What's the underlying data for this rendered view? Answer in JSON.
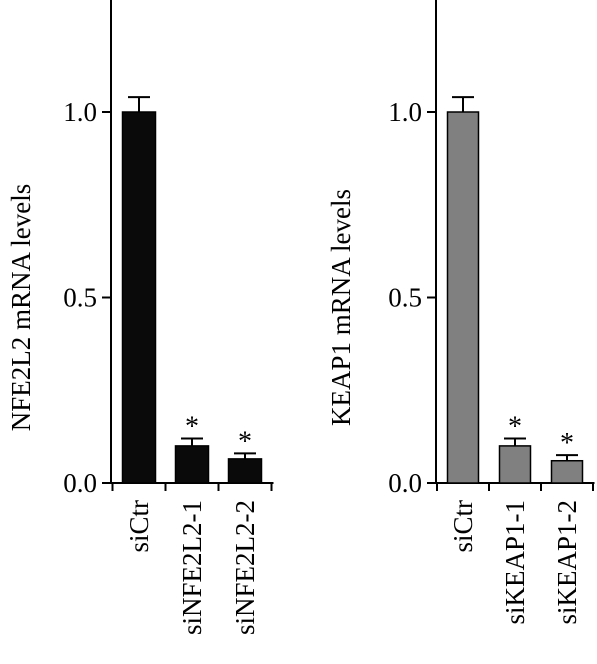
{
  "chart_data": [
    {
      "type": "bar",
      "ylabel": "NFE2L2 mRNA levels",
      "categories": [
        "siCtr",
        "siNFE2L2-1",
        "siNFE2L2-2"
      ],
      "values": [
        1.0,
        0.1,
        0.065
      ],
      "errors": [
        0.04,
        0.02,
        0.015
      ],
      "significance": [
        "",
        "*",
        "*"
      ],
      "ylim": [
        0,
        1.3
      ],
      "yticks": [
        "0.0",
        "0.5",
        "1.0"
      ],
      "bar_color": "#0a0a0a"
    },
    {
      "type": "bar",
      "ylabel": "KEAP1 mRNA levels",
      "categories": [
        "siCtr",
        "siKEAP1-1",
        "siKEAP1-2"
      ],
      "values": [
        1.0,
        0.1,
        0.06
      ],
      "errors": [
        0.04,
        0.02,
        0.015
      ],
      "significance": [
        "",
        "*",
        "*"
      ],
      "ylim": [
        0,
        1.3
      ],
      "yticks": [
        "0.0",
        "0.5",
        "1.0"
      ],
      "bar_color": "#808080"
    }
  ]
}
